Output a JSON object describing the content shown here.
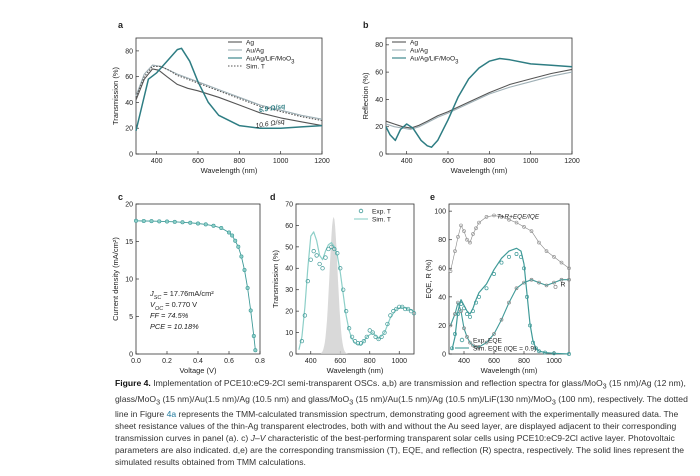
{
  "figure": {
    "caption": {
      "label": "Figure 4.",
      "p1": " Implementation of PCE10:eC9-2Cl semi-transparent OSCs. a,b) are transmission and reflection spectra for glass/MoO",
      "p2": " (15 nm)/Ag (12 nm), glass/MoO",
      "p3": " (15 nm)/Au(1.5 nm)/Ag (10.5 nm) and glass/MoO",
      "p4": " (15 nm)/Au(1.5 nm)/Ag (10.5 nm)/LiF(130 nm)/MoO",
      "p5": " (100 nm), respectively. The dotted line in Figure ",
      "ref": "4a",
      "p6": " represents the TMM-calculated transmission spectrum, demonstrating good agreement with the experimentally measured data. The sheet resistance values of the thin-Ag transparent electrodes, both with and without the Au seed layer, are displayed adjacent to their corresponding transmission curves in panel (a). c) ",
      "jv": "J–V",
      "p7": " characteristic of the best-performing transparent solar cells using PCE10:eC9-2Cl active layer. Photovoltaic parameters are also indicated. d,e) are the corresponding transmission (T), EQE, and reflection (R) spectra, respectively. The solid lines represent the simulated results obtained from TMM calculations.",
      "sub3": "3"
    }
  },
  "colors": {
    "ag": "#555555",
    "auag": "#9fb0b6",
    "lif": "#2e7d83",
    "sim": "#555555",
    "teal": "#3f9a98",
    "light": "#8dcfc8"
  },
  "chart_data": [
    {
      "panel": "a",
      "type": "line",
      "xlabel": "Wavelength (nm)",
      "ylabel": "Transmission (%)",
      "xlim": [
        300,
        1200
      ],
      "ylim": [
        0,
        90
      ],
      "xticks": [
        400,
        600,
        800,
        1000,
        1200
      ],
      "yticks": [
        0,
        20,
        40,
        60,
        80
      ],
      "legend": [
        "Ag",
        "Au/Ag",
        "Au/Ag/LiF/MoO3",
        "Sim. T"
      ],
      "annotations": [
        {
          "text": "6.9 Ω/sq",
          "x": 960,
          "y": 34
        },
        {
          "text": "10.6 Ω/sq",
          "x": 950,
          "y": 22
        }
      ],
      "series": [
        {
          "name": "Ag",
          "x": [
            300,
            340,
            380,
            410,
            450,
            500,
            550,
            600,
            700,
            800,
            900,
            1000,
            1100,
            1200
          ],
          "y": [
            42,
            58,
            66,
            65,
            60,
            54,
            51,
            49,
            44,
            38,
            32,
            28,
            25,
            22
          ]
        },
        {
          "name": "Au/Ag",
          "x": [
            300,
            340,
            380,
            420,
            460,
            500,
            550,
            600,
            700,
            800,
            900,
            1000,
            1100,
            1200
          ],
          "y": [
            45,
            62,
            69,
            68,
            65,
            62,
            59,
            56,
            50,
            44,
            38,
            34,
            30,
            27
          ]
        },
        {
          "name": "Au/Ag/LiF/MoO3",
          "x": [
            300,
            330,
            360,
            400,
            450,
            500,
            520,
            560,
            600,
            650,
            700,
            800,
            900,
            1000,
            1100,
            1200
          ],
          "y": [
            18,
            38,
            58,
            63,
            72,
            81,
            82,
            72,
            56,
            40,
            30,
            22,
            20,
            20,
            21,
            22
          ]
        },
        {
          "name": "Sim. T",
          "x": [
            300,
            340,
            380,
            420,
            460,
            500,
            550,
            600,
            700,
            800,
            900,
            1000,
            1100,
            1200
          ],
          "y": [
            44,
            60,
            68,
            68,
            65,
            61,
            58,
            55,
            49,
            43,
            37,
            33,
            29,
            26
          ]
        }
      ]
    },
    {
      "panel": "b",
      "type": "line",
      "xlabel": "Wavelength (nm)",
      "ylabel": "Reflection (%)",
      "xlim": [
        300,
        1200
      ],
      "ylim": [
        0,
        85
      ],
      "xticks": [
        400,
        600,
        800,
        1000,
        1200
      ],
      "yticks": [
        0,
        20,
        40,
        60,
        80
      ],
      "legend": [
        "Ag",
        "Au/Ag",
        "Au/Ag/LiF/MoO3"
      ],
      "series": [
        {
          "name": "Ag",
          "x": [
            300,
            340,
            380,
            420,
            460,
            500,
            550,
            600,
            700,
            800,
            900,
            1000,
            1100,
            1200
          ],
          "y": [
            24,
            22,
            20,
            19,
            21,
            24,
            28,
            31,
            38,
            45,
            51,
            55,
            59,
            62
          ]
        },
        {
          "name": "Au/Ag",
          "x": [
            300,
            340,
            380,
            420,
            460,
            500,
            550,
            600,
            700,
            800,
            900,
            1000,
            1100,
            1200
          ],
          "y": [
            22,
            20,
            19,
            18,
            20,
            23,
            27,
            30,
            37,
            44,
            49,
            53,
            57,
            60
          ]
        },
        {
          "name": "Au/Ag/LiF/MoO3",
          "x": [
            300,
            320,
            345,
            370,
            400,
            430,
            470,
            500,
            520,
            550,
            600,
            650,
            700,
            750,
            800,
            850,
            900,
            1000,
            1100,
            1200
          ],
          "y": [
            20,
            14,
            10,
            18,
            22,
            19,
            10,
            6,
            5,
            10,
            25,
            42,
            55,
            63,
            68,
            70,
            69,
            66,
            65,
            64
          ]
        }
      ]
    },
    {
      "panel": "c",
      "type": "scatter",
      "xlabel": "Voltage (V)",
      "ylabel": "Current density (mA/cm²)",
      "xlim": [
        0,
        0.8
      ],
      "ylim": [
        0,
        20
      ],
      "xticks": [
        0.0,
        0.2,
        0.4,
        0.6,
        0.8
      ],
      "xtick_labels": [
        "0.0",
        "0.2",
        "0.4",
        "0.6",
        "0.8"
      ],
      "yticks": [
        0,
        5,
        10,
        15,
        20
      ],
      "params": [
        "J_SC = 17.76mA/cm²",
        "V_OC = 0.770 V",
        "FF = 74.5%",
        "PCE = 10.18%"
      ],
      "series": [
        {
          "name": "J-V",
          "x": [
            0,
            0.05,
            0.1,
            0.15,
            0.2,
            0.25,
            0.3,
            0.35,
            0.4,
            0.45,
            0.5,
            0.55,
            0.6,
            0.62,
            0.64,
            0.66,
            0.68,
            0.7,
            0.72,
            0.74,
            0.76,
            0.77
          ],
          "y": [
            17.76,
            17.74,
            17.72,
            17.69,
            17.66,
            17.62,
            17.56,
            17.5,
            17.4,
            17.28,
            17.1,
            16.8,
            16.2,
            15.8,
            15.1,
            14.3,
            13,
            11.2,
            8.8,
            5.8,
            2.4,
            0.5
          ]
        }
      ]
    },
    {
      "panel": "d",
      "type": "line",
      "xlabel": "Wavelength (nm)",
      "ylabel": "Transmission (%)",
      "xlim": [
        300,
        1100
      ],
      "ylim": [
        0,
        70
      ],
      "xticks": [
        400,
        600,
        800,
        1000
      ],
      "yticks": [
        0,
        10,
        20,
        30,
        40,
        50,
        60,
        70
      ],
      "legend": [
        "Exp. T",
        "Sim. T"
      ],
      "shading": "photopic response centred near 555 nm",
      "series": [
        {
          "name": "Exp. T",
          "x": [
            340,
            360,
            380,
            400,
            420,
            440,
            460,
            480,
            500,
            520,
            540,
            560,
            580,
            600,
            620,
            640,
            660,
            680,
            700,
            720,
            740,
            760,
            780,
            800,
            820,
            840,
            860,
            880,
            900,
            920,
            940,
            960,
            980,
            1000,
            1020,
            1040,
            1060,
            1080,
            1100
          ],
          "y": [
            6,
            18,
            34,
            44,
            48,
            46,
            42,
            40,
            45,
            49,
            50,
            49,
            47,
            40,
            30,
            20,
            12,
            8,
            6,
            5,
            5,
            6,
            8,
            11,
            10,
            8,
            7,
            8,
            10,
            14,
            18,
            20,
            21,
            22,
            22,
            21,
            21,
            20,
            19
          ]
        },
        {
          "name": "Sim. T",
          "x": [
            320,
            340,
            360,
            380,
            400,
            420,
            440,
            460,
            480,
            500,
            520,
            540,
            560,
            580,
            600,
            620,
            640,
            660,
            680,
            700,
            740,
            780,
            820,
            860,
            900,
            940,
            980,
            1020,
            1060,
            1100
          ],
          "y": [
            2,
            8,
            22,
            40,
            55,
            57,
            53,
            46,
            44,
            48,
            51,
            52,
            50,
            46,
            38,
            28,
            18,
            11,
            7,
            5,
            4,
            8,
            10,
            7,
            10,
            17,
            21,
            22,
            21,
            20
          ]
        }
      ]
    },
    {
      "panel": "e",
      "type": "line",
      "xlabel": "Wavelength (nm)",
      "ylabel": "EQE, R (%)",
      "xlim": [
        300,
        1100
      ],
      "ylim": [
        0,
        105
      ],
      "xticks": [
        400,
        600,
        800,
        1000
      ],
      "yticks": [
        0,
        20,
        40,
        60,
        80,
        100
      ],
      "legend": [
        "Exp. EQE",
        "Sim. EQE (IQE = 0.9)"
      ],
      "annotations": [
        {
          "text": "T+R+EQE/IQE",
          "x": 760,
          "y": 95
        },
        {
          "text": "R",
          "x": 1060,
          "y": 48
        }
      ],
      "series": [
        {
          "name": "T+R+EQE/IQE",
          "x": [
            310,
            340,
            360,
            380,
            400,
            420,
            440,
            460,
            480,
            500,
            550,
            600,
            650,
            700,
            750,
            800,
            850,
            900,
            950,
            1000,
            1050,
            1100
          ],
          "y": [
            58,
            72,
            82,
            90,
            86,
            80,
            78,
            84,
            88,
            92,
            96,
            97,
            96,
            94,
            92,
            89,
            86,
            78,
            72,
            68,
            64,
            60
          ]
        },
        {
          "name": "R",
          "x": [
            310,
            340,
            360,
            380,
            400,
            420,
            440,
            460,
            480,
            500,
            550,
            600,
            650,
            700,
            750,
            800,
            850,
            900,
            950,
            1000,
            1050,
            1100
          ],
          "y": [
            20,
            28,
            36,
            30,
            18,
            12,
            8,
            6,
            5,
            5,
            8,
            14,
            24,
            36,
            46,
            50,
            52,
            50,
            48,
            50,
            52,
            52
          ]
        },
        {
          "name": "Exp. EQE",
          "x": [
            320,
            340,
            360,
            380,
            400,
            420,
            440,
            460,
            480,
            500,
            550,
            600,
            650,
            700,
            750,
            780,
            800,
            820,
            840,
            860,
            880,
            900,
            940,
            1000,
            1100
          ],
          "y": [
            4,
            14,
            28,
            35,
            32,
            28,
            26,
            30,
            36,
            40,
            46,
            56,
            64,
            68,
            70,
            68,
            60,
            40,
            20,
            8,
            4,
            2,
            1,
            0.5,
            0
          ],
          "sim": [
            3,
            12,
            30,
            38,
            34,
            30,
            28,
            32,
            38,
            43,
            49,
            59,
            67,
            72,
            74,
            72,
            63,
            42,
            21,
            9,
            4,
            2,
            1,
            0.5,
            0
          ]
        }
      ]
    }
  ]
}
